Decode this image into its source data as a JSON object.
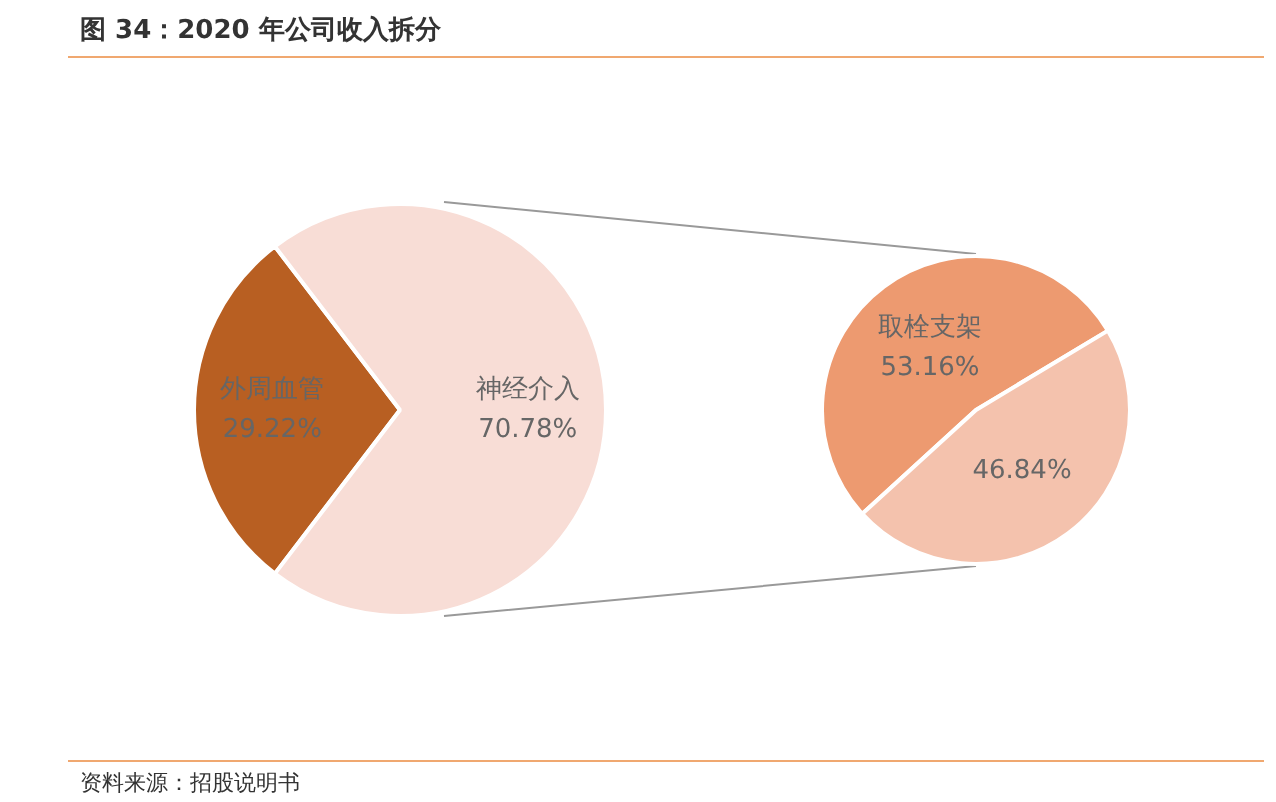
{
  "chart_data": [
    {
      "type": "pie",
      "title": "图 34：2020 年公司收入拆分",
      "categories": [
        "外周血管",
        "神经介入"
      ],
      "values": [
        29.22,
        70.78
      ],
      "value_labels": [
        "29.22%",
        "70.78%"
      ],
      "colors": [
        "#b85f22",
        "#f8ddd6"
      ],
      "annotations": [
        "资料来源：招股说明书"
      ]
    },
    {
      "type": "pie",
      "categories": [
        "取栓支架",
        null
      ],
      "values": [
        53.16,
        46.84
      ],
      "value_labels": [
        "53.16%",
        "46.84%"
      ],
      "colors": [
        "#ed9a70",
        "#f4c2ad"
      ]
    }
  ]
}
